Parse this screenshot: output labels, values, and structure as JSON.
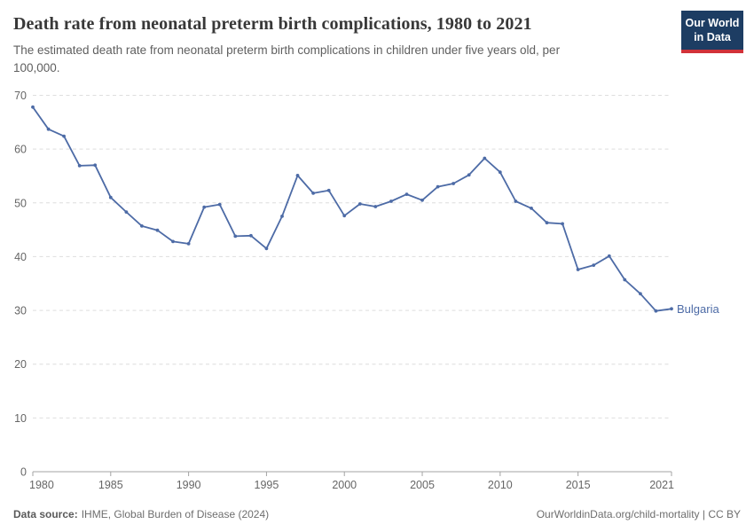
{
  "header": {
    "title": "Death rate from neonatal preterm birth complications, 1980 to 2021",
    "subtitle_line1": "The estimated death rate from neonatal preterm birth complications in children under five years old, per",
    "subtitle_line2": "100,000.",
    "logo_line1": "Our World",
    "logo_line2": "in Data"
  },
  "chart_data": {
    "type": "line",
    "title": "Death rate from neonatal preterm birth complications, 1980 to 2021",
    "subtitle": "The estimated death rate from neonatal preterm birth complications in children under five years old, per 100,000.",
    "xlabel": "",
    "ylabel": "",
    "xlim": [
      1980,
      2021
    ],
    "ylim": [
      0,
      70
    ],
    "x_ticks": [
      1980,
      1985,
      1990,
      1995,
      2000,
      2005,
      2010,
      2015,
      2021
    ],
    "y_ticks": [
      0,
      10,
      20,
      30,
      40,
      50,
      60,
      70
    ],
    "grid": "horizontal-dashed",
    "legend_position": "end-of-line-label",
    "series": [
      {
        "name": "Bulgaria",
        "color": "#4d6ba6",
        "x": [
          1980,
          1981,
          1982,
          1983,
          1984,
          1985,
          1986,
          1987,
          1988,
          1989,
          1990,
          1991,
          1992,
          1993,
          1994,
          1995,
          1996,
          1997,
          1998,
          1999,
          2000,
          2001,
          2002,
          2003,
          2004,
          2005,
          2006,
          2007,
          2008,
          2009,
          2010,
          2011,
          2012,
          2013,
          2014,
          2015,
          2016,
          2017,
          2018,
          2019,
          2020,
          2021
        ],
        "values": [
          67.8,
          63.7,
          62.4,
          56.9,
          57.0,
          51.0,
          48.3,
          45.7,
          44.9,
          42.8,
          42.4,
          49.2,
          49.7,
          43.8,
          43.9,
          41.5,
          47.5,
          55.1,
          51.8,
          52.3,
          47.6,
          49.8,
          49.3,
          50.3,
          51.6,
          50.5,
          53.0,
          53.6,
          55.2,
          58.3,
          55.7,
          50.3,
          49.0,
          46.3,
          46.1,
          37.6,
          38.4,
          40.1,
          35.7,
          33.1,
          29.9,
          30.3
        ]
      }
    ]
  },
  "footer": {
    "source_label": "Data source:",
    "source_value": "IHME, Global Burden of Disease (2024)",
    "attribution": "OurWorldinData.org/child-mortality | CC BY"
  },
  "colors": {
    "line": "#4d6ba6",
    "grid": "#dedede",
    "axis": "#a3a3a3",
    "axis_label": "#666666",
    "logo_bg": "#1d3d63",
    "logo_accent": "#d13239"
  }
}
